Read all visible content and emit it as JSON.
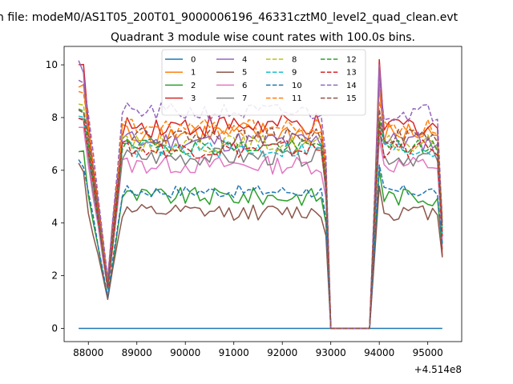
{
  "figure": {
    "suptitle": "n file: modeM0/AS1T05_200T01_9000006196_46331cztM0_level2_quad_clean.evt"
  },
  "chart_data": {
    "type": "line",
    "title": "Quadrant 3 module wise count rates with 100.0s bins.",
    "xlabel": "",
    "ylabel": "",
    "x_offset_label": "+4.514e8",
    "xlim": [
      87500,
      95700
    ],
    "ylim": [
      -0.5,
      10.7
    ],
    "xticks": [
      88000,
      89000,
      90000,
      91000,
      92000,
      93000,
      94000,
      95000
    ],
    "xtick_labels": [
      "88000",
      "89000",
      "90000",
      "91000",
      "92000",
      "93000",
      "94000",
      "95000"
    ],
    "yticks": [
      0,
      2,
      4,
      6,
      8,
      10
    ],
    "ytick_labels": [
      "0",
      "2",
      "4",
      "6",
      "8",
      "10"
    ],
    "grid": false,
    "legend_position": "top-center",
    "legend_columns": 4,
    "x_range_segments": [
      [
        87800,
        92900
      ],
      [
        93000,
        93800
      ],
      [
        93900,
        95300
      ]
    ],
    "bin_size": 100,
    "series": [
      {
        "name": "0",
        "color": "#1f77b4",
        "dash": "solid",
        "start": 0,
        "dip": 0,
        "level": 0,
        "tail": 0,
        "noise": 0,
        "flat": true
      },
      {
        "name": "1",
        "color": "#ff7f0e",
        "dash": "solid",
        "start": 9.2,
        "dip": 1.6,
        "level": 7.4,
        "tail": 3.5,
        "noise": 0.45
      },
      {
        "name": "2",
        "color": "#2ca02c",
        "dash": "solid",
        "start": 6.8,
        "dip": 1.2,
        "level": 5.0,
        "tail": 3.0,
        "noise": 0.35
      },
      {
        "name": "3",
        "color": "#d62728",
        "dash": "solid",
        "start": 10.2,
        "dip": 1.8,
        "level": 7.7,
        "tail": 2.7,
        "noise": 0.45
      },
      {
        "name": "4",
        "color": "#9467bd",
        "dash": "solid",
        "start": 10.0,
        "dip": 1.7,
        "level": 7.1,
        "tail": 3.2,
        "noise": 0.4
      },
      {
        "name": "5",
        "color": "#8c564b",
        "dash": "solid",
        "start": 6.2,
        "dip": 1.1,
        "level": 4.4,
        "tail": 2.7,
        "noise": 0.3
      },
      {
        "name": "6",
        "color": "#e377c2",
        "dash": "solid",
        "start": 7.6,
        "dip": 1.5,
        "level": 6.2,
        "tail": 3.4,
        "noise": 0.35
      },
      {
        "name": "7",
        "color": "#7f7f7f",
        "dash": "solid",
        "start": 8.0,
        "dip": 1.5,
        "level": 6.5,
        "tail": 3.6,
        "noise": 0.35
      },
      {
        "name": "8",
        "color": "#bcbd22",
        "dash": "dashed",
        "start": 8.6,
        "dip": 1.6,
        "level": 7.0,
        "tail": 3.8,
        "noise": 0.35
      },
      {
        "name": "9",
        "color": "#17becf",
        "dash": "dashed",
        "start": 8.2,
        "dip": 1.5,
        "level": 6.8,
        "tail": 3.6,
        "noise": 0.35
      },
      {
        "name": "10",
        "color": "#1f77b4",
        "dash": "dashed",
        "start": 6.3,
        "dip": 1.2,
        "level": 5.2,
        "tail": 3.2,
        "noise": 0.25
      },
      {
        "name": "11",
        "color": "#ff7f0e",
        "dash": "dashed",
        "start": 8.9,
        "dip": 1.7,
        "level": 7.6,
        "tail": 4.2,
        "noise": 0.35
      },
      {
        "name": "12",
        "color": "#2ca02c",
        "dash": "dashed",
        "start": 8.3,
        "dip": 1.6,
        "level": 6.9,
        "tail": 3.8,
        "noise": 0.3
      },
      {
        "name": "13",
        "color": "#d62728",
        "dash": "dashed",
        "start": 8.0,
        "dip": 1.5,
        "level": 6.8,
        "tail": 3.5,
        "noise": 0.35
      },
      {
        "name": "14",
        "color": "#9467bd",
        "dash": "dashed",
        "start": 9.5,
        "dip": 1.9,
        "level": 8.2,
        "tail": 4.0,
        "noise": 0.35
      },
      {
        "name": "15",
        "color": "#8c564b",
        "dash": "dashed",
        "start": 8.4,
        "dip": 1.6,
        "level": 7.3,
        "tail": 3.9,
        "noise": 0.3
      }
    ]
  }
}
